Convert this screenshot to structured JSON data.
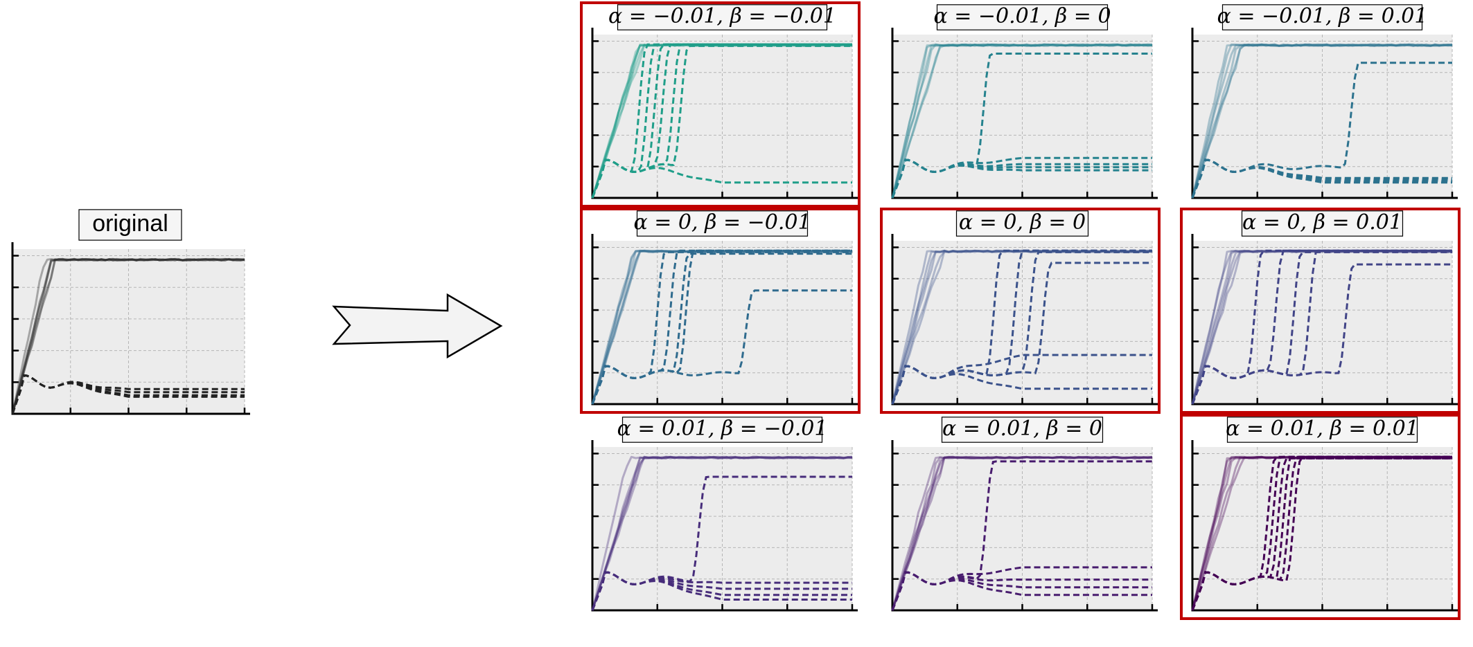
{
  "original": {
    "title": "original",
    "color": "#222222"
  },
  "arrow_icon": "right-arrow-icon",
  "highlight_color": "#c00000",
  "chart_data": [
    {
      "type": "line",
      "title": "α = −0.01,  β = −0.01",
      "alpha": -0.01,
      "beta": -0.01,
      "highlighted": true,
      "color": "#1f9e89",
      "solid": [
        [
          0,
          1.0
        ]
      ],
      "dashed": [
        [
          0.15,
          1.0
        ],
        [
          0.18,
          1.0
        ],
        [
          0.21,
          1.0
        ],
        [
          0.24,
          1.0
        ],
        [
          0.28,
          1.0
        ],
        [
          0.31,
          0.99
        ],
        [
          0.0,
          0.1
        ]
      ]
    },
    {
      "type": "line",
      "title": "α = −0.01,  β = 0",
      "alpha": -0.01,
      "beta": 0,
      "highlighted": false,
      "color": "#25828e",
      "solid": [
        [
          0,
          1.0
        ]
      ],
      "dashed": [
        [
          0.32,
          0.94
        ],
        [
          0.0,
          0.26
        ],
        [
          0.0,
          0.22
        ],
        [
          0.0,
          0.2
        ],
        [
          0.0,
          0.18
        ]
      ]
    },
    {
      "type": "line",
      "title": "α = −0.01,  β = 0.01",
      "alpha": -0.01,
      "beta": 0.01,
      "highlighted": false,
      "color": "#2c728e",
      "solid": [
        [
          0,
          1.0
        ]
      ],
      "dashed": [
        [
          0.58,
          0.88
        ],
        [
          0.0,
          0.12
        ],
        [
          0.0,
          0.11
        ],
        [
          0.0,
          0.1
        ],
        [
          0.0,
          0.13
        ]
      ]
    },
    {
      "type": "line",
      "title": "α = 0,  β = −0.01",
      "alpha": 0,
      "beta": -0.01,
      "highlighted": true,
      "color": "#2f6b8e",
      "solid": [
        [
          0,
          1.0
        ]
      ],
      "dashed": [
        [
          0.22,
          0.99
        ],
        [
          0.27,
          1.0
        ],
        [
          0.31,
          0.98
        ],
        [
          0.33,
          1.0
        ],
        [
          0.56,
          0.74
        ]
      ]
    },
    {
      "type": "line",
      "title": "α = 0,  β = 0",
      "alpha": 0,
      "beta": 0,
      "highlighted": true,
      "color": "#3b528b",
      "solid": [
        [
          0,
          1.0
        ]
      ],
      "dashed": [
        [
          0.36,
          1.0
        ],
        [
          0.44,
          1.0
        ],
        [
          0.5,
          0.99
        ],
        [
          0.55,
          0.92
        ],
        [
          0.0,
          0.32
        ],
        [
          0.0,
          0.1
        ]
      ]
    },
    {
      "type": "line",
      "title": "α = 0,  β = 0.01",
      "alpha": 0,
      "beta": 0.01,
      "highlighted": true,
      "color": "#414487",
      "solid": [
        [
          0,
          1.0
        ]
      ],
      "dashed": [
        [
          0.21,
          1.0
        ],
        [
          0.29,
          1.0
        ],
        [
          0.36,
          0.99
        ],
        [
          0.42,
          1.0
        ],
        [
          0.56,
          0.91
        ]
      ]
    },
    {
      "type": "line",
      "title": "α = 0.01,  β = −0.01",
      "alpha": 0.01,
      "beta": -0.01,
      "highlighted": false,
      "color": "#472d7b",
      "solid": [
        [
          0,
          1.0
        ]
      ],
      "dashed": [
        [
          0.38,
          0.87
        ],
        [
          0.0,
          0.18
        ],
        [
          0.0,
          0.14
        ],
        [
          0.0,
          0.1
        ],
        [
          0.0,
          0.07
        ]
      ]
    },
    {
      "type": "line",
      "title": "α = 0.01,  β = 0",
      "alpha": 0.01,
      "beta": 0,
      "highlighted": false,
      "color": "#481c6e",
      "solid": [
        [
          0,
          1.0
        ]
      ],
      "dashed": [
        [
          0.33,
          0.97
        ],
        [
          0.0,
          0.28
        ],
        [
          0.0,
          0.2
        ],
        [
          0.0,
          0.15
        ],
        [
          0.0,
          0.1
        ]
      ]
    },
    {
      "type": "line",
      "title": "α = 0.01,  β = 0.01",
      "alpha": 0.01,
      "beta": 0.01,
      "highlighted": true,
      "color": "#440154",
      "solid": [
        [
          0,
          1.0
        ]
      ],
      "dashed": [
        [
          0.26,
          1.0
        ],
        [
          0.28,
          1.0
        ],
        [
          0.3,
          0.99
        ],
        [
          0.32,
          1.0
        ],
        [
          0.34,
          0.99
        ],
        [
          0.36,
          1.0
        ]
      ]
    }
  ]
}
